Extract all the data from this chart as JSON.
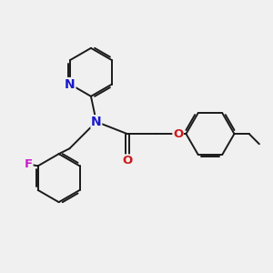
{
  "background_color": "#f0f0f0",
  "bond_color": "#1a1a1a",
  "atom_colors": {
    "N": "#1a1acc",
    "O": "#cc1a1a",
    "F": "#cc1acc"
  },
  "bond_width": 1.4,
  "font_size": 8.5,
  "fig_width": 3.0,
  "fig_height": 3.0,
  "dpi": 100
}
